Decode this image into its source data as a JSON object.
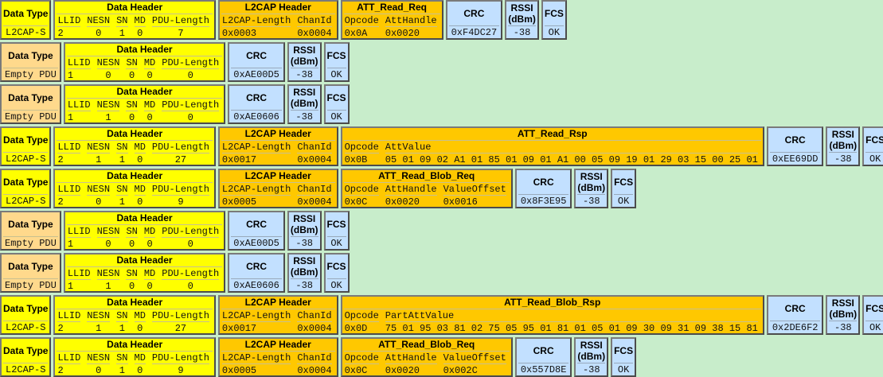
{
  "colors": {
    "background": "#c8edcb",
    "data_header": "#ffff00",
    "l2cap": "#ffc800",
    "empty_pdu_type": "#ffd98c",
    "trailer": "#c2e0ff"
  },
  "packets": [
    {
      "blocks": [
        {
          "kind": "dtype",
          "color": "yellow",
          "title": "Data Type",
          "value": "L2CAP-S"
        },
        {
          "kind": "header",
          "color": "yellow",
          "title": "Data Header",
          "fields": [
            {
              "label": "LLID",
              "value": "2"
            },
            {
              "label": "NESN",
              "value": "0"
            },
            {
              "label": "SN",
              "value": "1"
            },
            {
              "label": "MD",
              "value": "0"
            },
            {
              "label": "PDU-Length",
              "value": "7"
            }
          ]
        },
        {
          "kind": "l2cap",
          "color": "orange",
          "title": "L2CAP Header",
          "fields": [
            {
              "label": "L2CAP-Length",
              "value": "0x0003"
            },
            {
              "label": "ChanId",
              "value": "0x0004"
            }
          ]
        },
        {
          "kind": "payload",
          "color": "orange",
          "title": "ATT_Read_Req",
          "fields": [
            {
              "label": "Opcode",
              "value": "0x0A"
            },
            {
              "label": "AttHandle",
              "value": "0x0020"
            }
          ]
        },
        {
          "kind": "simple",
          "color": "blue",
          "title": "CRC",
          "value": "0xF4DC27"
        },
        {
          "kind": "simple",
          "color": "blue",
          "title": "RSSI\n(dBm)",
          "value": "-38"
        },
        {
          "kind": "simple",
          "color": "blue",
          "title": "FCS",
          "value": "OK"
        }
      ]
    },
    {
      "blocks": [
        {
          "kind": "dtype",
          "color": "peach",
          "title": "Data Type",
          "value": "Empty PDU"
        },
        {
          "kind": "header",
          "color": "yellow",
          "title": "Data Header",
          "fields": [
            {
              "label": "LLID",
              "value": "1"
            },
            {
              "label": "NESN",
              "value": "0"
            },
            {
              "label": "SN",
              "value": "0"
            },
            {
              "label": "MD",
              "value": "0"
            },
            {
              "label": "PDU-Length",
              "value": "0"
            }
          ]
        },
        {
          "kind": "simple",
          "color": "blue",
          "title": "CRC",
          "value": "0xAE00D5"
        },
        {
          "kind": "simple",
          "color": "blue",
          "title": "RSSI\n(dBm)",
          "value": "-38"
        },
        {
          "kind": "simple",
          "color": "blue",
          "title": "FCS",
          "value": "OK"
        }
      ]
    },
    {
      "blocks": [
        {
          "kind": "dtype",
          "color": "peach",
          "title": "Data Type",
          "value": "Empty PDU"
        },
        {
          "kind": "header",
          "color": "yellow",
          "title": "Data Header",
          "fields": [
            {
              "label": "LLID",
              "value": "1"
            },
            {
              "label": "NESN",
              "value": "1"
            },
            {
              "label": "SN",
              "value": "0"
            },
            {
              "label": "MD",
              "value": "0"
            },
            {
              "label": "PDU-Length",
              "value": "0"
            }
          ]
        },
        {
          "kind": "simple",
          "color": "blue",
          "title": "CRC",
          "value": "0xAE0606"
        },
        {
          "kind": "simple",
          "color": "blue",
          "title": "RSSI\n(dBm)",
          "value": "-38"
        },
        {
          "kind": "simple",
          "color": "blue",
          "title": "FCS",
          "value": "OK"
        }
      ]
    },
    {
      "blocks": [
        {
          "kind": "dtype",
          "color": "yellow",
          "title": "Data Type",
          "value": "L2CAP-S"
        },
        {
          "kind": "header",
          "color": "yellow",
          "title": "Data Header",
          "fields": [
            {
              "label": "LLID",
              "value": "2"
            },
            {
              "label": "NESN",
              "value": "1"
            },
            {
              "label": "SN",
              "value": "1"
            },
            {
              "label": "MD",
              "value": "0"
            },
            {
              "label": "PDU-Length",
              "value": "27"
            }
          ]
        },
        {
          "kind": "l2cap",
          "color": "orange",
          "title": "L2CAP Header",
          "fields": [
            {
              "label": "L2CAP-Length",
              "value": "0x0017"
            },
            {
              "label": "ChanId",
              "value": "0x0004"
            }
          ]
        },
        {
          "kind": "payload",
          "color": "orange",
          "title": "ATT_Read_Rsp",
          "fields": [
            {
              "label": "Opcode",
              "value": "0x0B"
            },
            {
              "label": "AttValue",
              "value": "05 01 09 02 A1 01 85 01 09 01 A1 00 05 09 19 01 29 03 15 00 25 01"
            }
          ]
        },
        {
          "kind": "simple",
          "color": "blue",
          "title": "CRC",
          "value": "0xEE69DD"
        },
        {
          "kind": "simple",
          "color": "blue",
          "title": "RSSI\n(dBm)",
          "value": "-38"
        },
        {
          "kind": "simple",
          "color": "blue",
          "title": "FCS",
          "value": "OK"
        }
      ]
    },
    {
      "blocks": [
        {
          "kind": "dtype",
          "color": "yellow",
          "title": "Data Type",
          "value": "L2CAP-S"
        },
        {
          "kind": "header",
          "color": "yellow",
          "title": "Data Header",
          "fields": [
            {
              "label": "LLID",
              "value": "2"
            },
            {
              "label": "NESN",
              "value": "0"
            },
            {
              "label": "SN",
              "value": "1"
            },
            {
              "label": "MD",
              "value": "0"
            },
            {
              "label": "PDU-Length",
              "value": "9"
            }
          ]
        },
        {
          "kind": "l2cap",
          "color": "orange",
          "title": "L2CAP Header",
          "fields": [
            {
              "label": "L2CAP-Length",
              "value": "0x0005"
            },
            {
              "label": "ChanId",
              "value": "0x0004"
            }
          ]
        },
        {
          "kind": "payload",
          "color": "orange",
          "title": "ATT_Read_Blob_Req",
          "fields": [
            {
              "label": "Opcode",
              "value": "0x0C"
            },
            {
              "label": "AttHandle",
              "value": "0x0020"
            },
            {
              "label": "ValueOffset",
              "value": "0x0016"
            }
          ]
        },
        {
          "kind": "simple",
          "color": "blue",
          "title": "CRC",
          "value": "0x8F3E95"
        },
        {
          "kind": "simple",
          "color": "blue",
          "title": "RSSI\n(dBm)",
          "value": "-38"
        },
        {
          "kind": "simple",
          "color": "blue",
          "title": "FCS",
          "value": "OK"
        }
      ]
    },
    {
      "blocks": [
        {
          "kind": "dtype",
          "color": "peach",
          "title": "Data Type",
          "value": "Empty PDU"
        },
        {
          "kind": "header",
          "color": "yellow",
          "title": "Data Header",
          "fields": [
            {
              "label": "LLID",
              "value": "1"
            },
            {
              "label": "NESN",
              "value": "0"
            },
            {
              "label": "SN",
              "value": "0"
            },
            {
              "label": "MD",
              "value": "0"
            },
            {
              "label": "PDU-Length",
              "value": "0"
            }
          ]
        },
        {
          "kind": "simple",
          "color": "blue",
          "title": "CRC",
          "value": "0xAE00D5"
        },
        {
          "kind": "simple",
          "color": "blue",
          "title": "RSSI\n(dBm)",
          "value": "-38"
        },
        {
          "kind": "simple",
          "color": "blue",
          "title": "FCS",
          "value": "OK"
        }
      ]
    },
    {
      "blocks": [
        {
          "kind": "dtype",
          "color": "peach",
          "title": "Data Type",
          "value": "Empty PDU"
        },
        {
          "kind": "header",
          "color": "yellow",
          "title": "Data Header",
          "fields": [
            {
              "label": "LLID",
              "value": "1"
            },
            {
              "label": "NESN",
              "value": "1"
            },
            {
              "label": "SN",
              "value": "0"
            },
            {
              "label": "MD",
              "value": "0"
            },
            {
              "label": "PDU-Length",
              "value": "0"
            }
          ]
        },
        {
          "kind": "simple",
          "color": "blue",
          "title": "CRC",
          "value": "0xAE0606"
        },
        {
          "kind": "simple",
          "color": "blue",
          "title": "RSSI\n(dBm)",
          "value": "-38"
        },
        {
          "kind": "simple",
          "color": "blue",
          "title": "FCS",
          "value": "OK"
        }
      ]
    },
    {
      "blocks": [
        {
          "kind": "dtype",
          "color": "yellow",
          "title": "Data Type",
          "value": "L2CAP-S"
        },
        {
          "kind": "header",
          "color": "yellow",
          "title": "Data Header",
          "fields": [
            {
              "label": "LLID",
              "value": "2"
            },
            {
              "label": "NESN",
              "value": "1"
            },
            {
              "label": "SN",
              "value": "1"
            },
            {
              "label": "MD",
              "value": "0"
            },
            {
              "label": "PDU-Length",
              "value": "27"
            }
          ]
        },
        {
          "kind": "l2cap",
          "color": "orange",
          "title": "L2CAP Header",
          "fields": [
            {
              "label": "L2CAP-Length",
              "value": "0x0017"
            },
            {
              "label": "ChanId",
              "value": "0x0004"
            }
          ]
        },
        {
          "kind": "payload",
          "color": "orange",
          "title": "ATT_Read_Blob_Rsp",
          "fields": [
            {
              "label": "Opcode",
              "value": "0x0D"
            },
            {
              "label": "PartAttValue",
              "value": "75 01 95 03 81 02 75 05 95 01 81 01 05 01 09 30 09 31 09 38 15 81"
            }
          ]
        },
        {
          "kind": "simple",
          "color": "blue",
          "title": "CRC",
          "value": "0x2DE6F2"
        },
        {
          "kind": "simple",
          "color": "blue",
          "title": "RSSI\n(dBm)",
          "value": "-38"
        },
        {
          "kind": "simple",
          "color": "blue",
          "title": "FCS",
          "value": "OK"
        }
      ]
    },
    {
      "blocks": [
        {
          "kind": "dtype",
          "color": "yellow",
          "title": "Data Type",
          "value": "L2CAP-S"
        },
        {
          "kind": "header",
          "color": "yellow",
          "title": "Data Header",
          "fields": [
            {
              "label": "LLID",
              "value": "2"
            },
            {
              "label": "NESN",
              "value": "0"
            },
            {
              "label": "SN",
              "value": "1"
            },
            {
              "label": "MD",
              "value": "0"
            },
            {
              "label": "PDU-Length",
              "value": "9"
            }
          ]
        },
        {
          "kind": "l2cap",
          "color": "orange",
          "title": "L2CAP Header",
          "fields": [
            {
              "label": "L2CAP-Length",
              "value": "0x0005"
            },
            {
              "label": "ChanId",
              "value": "0x0004"
            }
          ]
        },
        {
          "kind": "payload",
          "color": "orange",
          "title": "ATT_Read_Blob_Req",
          "fields": [
            {
              "label": "Opcode",
              "value": "0x0C"
            },
            {
              "label": "AttHandle",
              "value": "0x0020"
            },
            {
              "label": "ValueOffset",
              "value": "0x002C"
            }
          ]
        },
        {
          "kind": "simple",
          "color": "blue",
          "title": "CRC",
          "value": "0x557D8E"
        },
        {
          "kind": "simple",
          "color": "blue",
          "title": "RSSI\n(dBm)",
          "value": "-38"
        },
        {
          "kind": "simple",
          "color": "blue",
          "title": "FCS",
          "value": "OK"
        }
      ]
    }
  ]
}
